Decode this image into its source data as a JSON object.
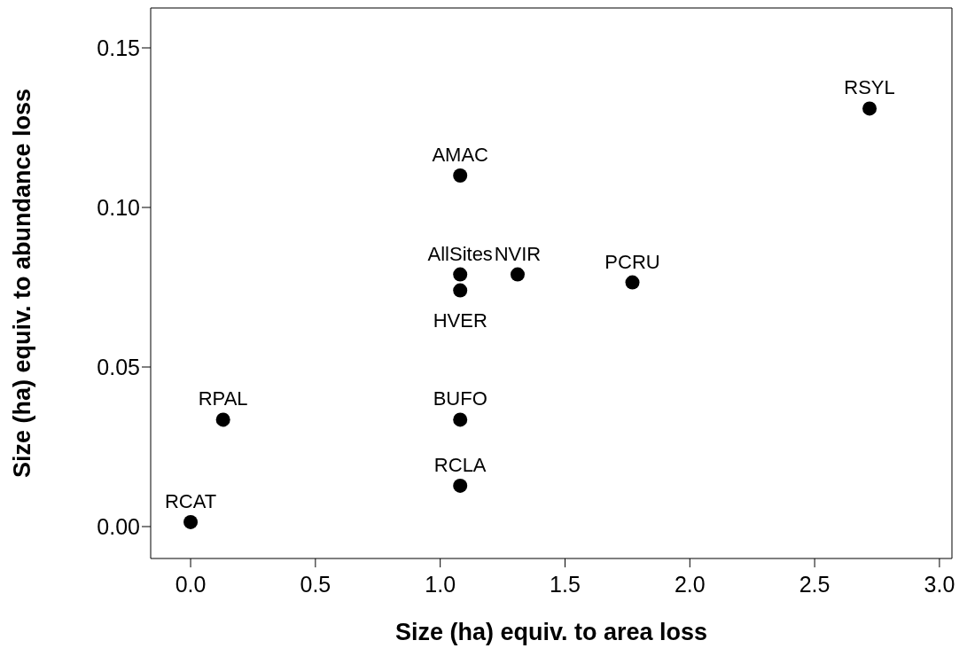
{
  "chart_data": {
    "type": "scatter",
    "xlabel": "Size (ha) equiv. to area loss",
    "ylabel": "Size (ha) equiv. to abundance loss",
    "x": [
      0.0,
      0.13,
      1.08,
      1.08,
      1.08,
      1.08,
      1.08,
      1.31,
      1.77,
      2.72
    ],
    "series": [
      {
        "color": "#000000",
        "values": [
          0.0014,
          0.0335,
          0.0335,
          0.0128,
          0.074,
          0.079,
          0.11,
          0.079,
          0.0765,
          0.131
        ]
      }
    ],
    "annotations": [
      {
        "text": "RCAT",
        "x": 0.0,
        "y": 0.0014
      },
      {
        "text": "RPAL",
        "x": 0.13,
        "y": 0.0335
      },
      {
        "text": "BUFO",
        "x": 1.08,
        "y": 0.0335
      },
      {
        "text": "RCLA",
        "x": 1.08,
        "y": 0.0128
      },
      {
        "text": "HVER",
        "x": 1.08,
        "y": 0.074
      },
      {
        "text": "AllSites",
        "x": 1.08,
        "y": 0.079
      },
      {
        "text": "AMAC",
        "x": 1.08,
        "y": 0.11
      },
      {
        "text": "NVIR",
        "x": 1.31,
        "y": 0.079
      },
      {
        "text": "PCRU",
        "x": 1.77,
        "y": 0.0765
      },
      {
        "text": "RSYL",
        "x": 2.72,
        "y": 0.131
      }
    ],
    "xlim": [
      -0.16,
      3.05
    ],
    "xticks": [
      {
        "value": 0,
        "label": "0.0"
      },
      {
        "value": 0.5,
        "label": "0.5"
      },
      {
        "value": 1,
        "label": "1.0"
      },
      {
        "value": 1.5,
        "label": "1.5"
      },
      {
        "value": 2,
        "label": "2.0"
      },
      {
        "value": 2.5,
        "label": "2.5"
      },
      {
        "value": 3,
        "label": "3.0"
      }
    ],
    "ylim": [
      -0.01,
      0.1625
    ],
    "yticks": [
      {
        "value": 0,
        "label": "0.00"
      },
      {
        "value": 0.05,
        "label": "0.05"
      },
      {
        "value": 0.1,
        "label": "0.10"
      },
      {
        "value": 0.15,
        "label": "0.15"
      }
    ],
    "marker": "circle",
    "grid": false,
    "legend": false
  }
}
